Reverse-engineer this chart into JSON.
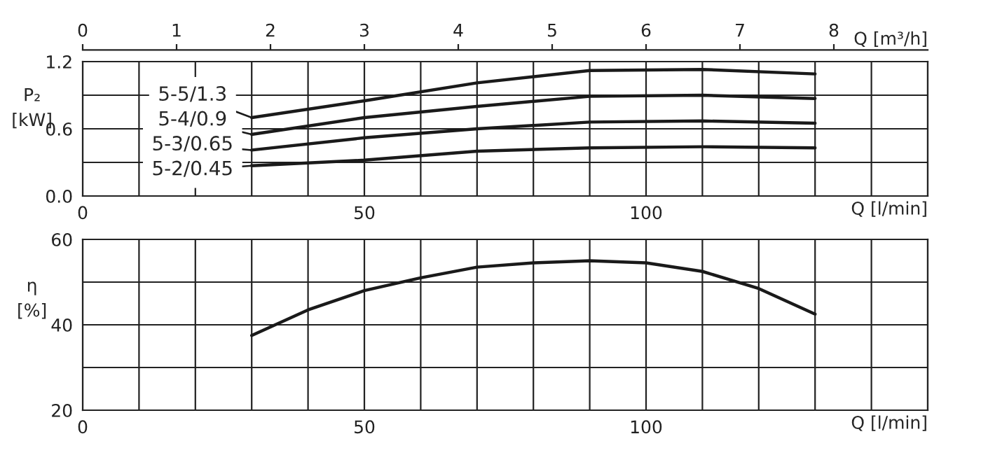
{
  "chart_data": [
    {
      "type": "line",
      "xlabel": "Q [l/min]",
      "ylabel": "P₂\n[kW]",
      "x2label": "Q [m³/h]",
      "x": [
        30,
        50,
        70,
        90,
        110,
        130
      ],
      "series": [
        {
          "name": "5-5/1.3",
          "color": "#1a1a1a",
          "values": [
            0.7,
            0.85,
            1.01,
            1.12,
            1.13,
            1.09
          ]
        },
        {
          "name": "5-4/0.9",
          "color": "#1a1a1a",
          "values": [
            0.55,
            0.7,
            0.8,
            0.89,
            0.9,
            0.87
          ]
        },
        {
          "name": "5-3/0.65",
          "color": "#1a1a1a",
          "values": [
            0.41,
            0.52,
            0.6,
            0.66,
            0.67,
            0.65
          ]
        },
        {
          "name": "5-2/0.45",
          "color": "#1a1a1a",
          "values": [
            0.27,
            0.32,
            0.4,
            0.43,
            0.44,
            0.43
          ]
        }
      ],
      "xlim": [
        0,
        150
      ],
      "xticks": [
        0,
        {
          "value": 10,
          "label": null
        },
        {
          "value": 20,
          "label": null
        },
        {
          "value": 30,
          "label": null
        },
        {
          "value": 40,
          "label": null
        },
        50,
        {
          "value": 60,
          "label": null
        },
        {
          "value": 70,
          "label": null
        },
        {
          "value": 80,
          "label": null
        },
        {
          "value": 90,
          "label": null
        },
        100,
        {
          "value": 110,
          "label": null
        },
        {
          "value": 120,
          "label": null
        },
        {
          "value": 130,
          "label": null
        },
        {
          "value": 140,
          "label": null
        },
        {
          "value": 150,
          "label": null
        }
      ],
      "x2lim": [
        0,
        9
      ],
      "x2ticks": [
        0,
        1,
        2,
        3,
        4,
        5,
        6,
        7,
        8
      ],
      "ylim": [
        0,
        1.2
      ],
      "yticks": [
        {
          "value": 0,
          "label": "0.0"
        },
        {
          "value": 0.3,
          "label": null
        },
        0.6,
        {
          "value": 0.9,
          "label": null
        },
        1.2
      ],
      "grid": true,
      "legend": "left",
      "line_style": "solid",
      "marker": "none"
    },
    {
      "type": "line",
      "xlabel": "Q [l/min]",
      "ylabel": "η\n[%]",
      "x": [
        30,
        40,
        50,
        60,
        70,
        80,
        90,
        100,
        110,
        120,
        130
      ],
      "series": [
        {
          "color": "#1a1a1a",
          "values": [
            37.5,
            43.5,
            48,
            51,
            53.5,
            54.5,
            55,
            54.5,
            52.5,
            48.5,
            42.5
          ]
        }
      ],
      "xlim": [
        0,
        150
      ],
      "xticks": [
        0,
        {
          "value": 10,
          "label": null
        },
        {
          "value": 20,
          "label": null
        },
        {
          "value": 30,
          "label": null
        },
        {
          "value": 40,
          "label": null
        },
        50,
        {
          "value": 60,
          "label": null
        },
        {
          "value": 70,
          "label": null
        },
        {
          "value": 80,
          "label": null
        },
        {
          "value": 90,
          "label": null
        },
        100,
        {
          "value": 110,
          "label": null
        },
        {
          "value": 120,
          "label": null
        },
        {
          "value": 130,
          "label": null
        },
        {
          "value": 140,
          "label": null
        },
        {
          "value": 150,
          "label": null
        }
      ],
      "ylim": [
        20,
        60
      ],
      "yticks": [
        20,
        {
          "value": 30,
          "label": null
        },
        40,
        {
          "value": 50,
          "label": null
        },
        60
      ],
      "grid": true,
      "legend": false,
      "line_style": "solid",
      "marker": "none"
    }
  ]
}
